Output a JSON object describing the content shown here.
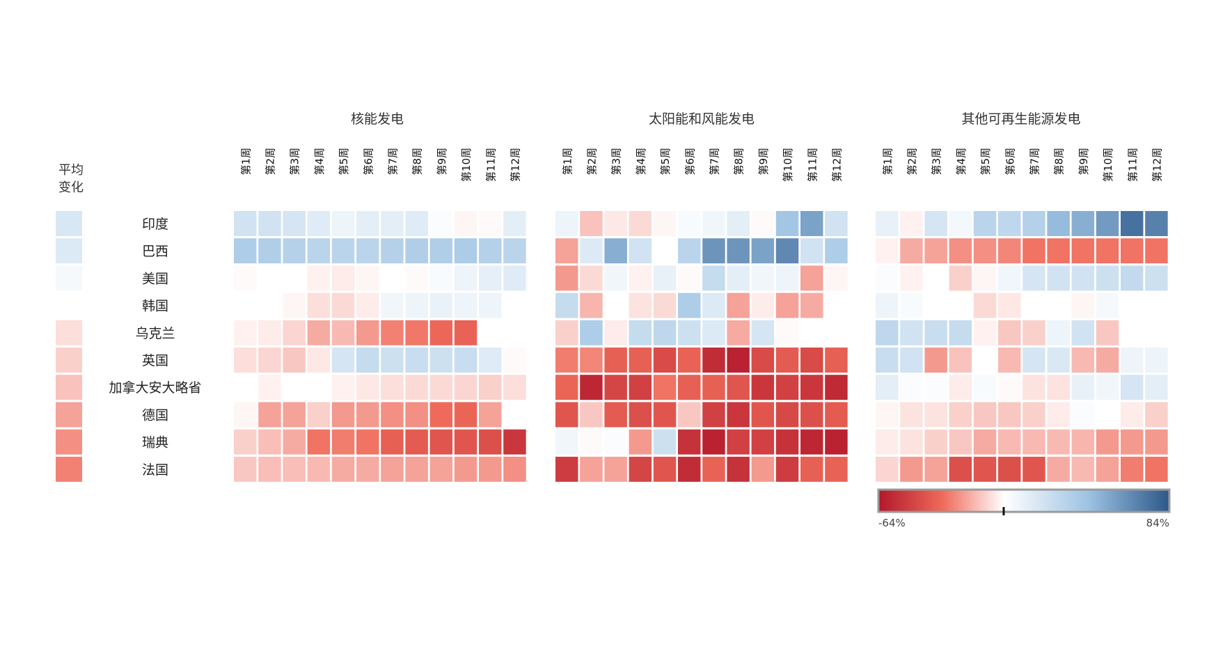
{
  "chart_data": {
    "type": "heatmap",
    "avg_title_lines": [
      "平均",
      "变化"
    ],
    "weeks": [
      "第1周",
      "第2周",
      "第3周",
      "第4周",
      "第5周",
      "第6周",
      "第7周",
      "第8周",
      "第9周",
      "第10周",
      "第11周",
      "第12周"
    ],
    "countries": [
      "印度",
      "巴西",
      "美国",
      "韩国",
      "乌克兰",
      "英国",
      "加拿大安大略省",
      "德国",
      "瑞典",
      "法国"
    ],
    "average_change": [
      17,
      15,
      4,
      0,
      -7,
      -10,
      -13,
      -20,
      -24,
      -27
    ],
    "panels": [
      {
        "title": "核能发电",
        "values": [
          [
            20,
            20,
            18,
            14,
            8,
            12,
            12,
            14,
            2,
            -2,
            -1,
            12
          ],
          [
            35,
            34,
            32,
            30,
            30,
            30,
            32,
            34,
            34,
            36,
            32,
            30
          ],
          [
            -1,
            0,
            0,
            -3,
            -4,
            -2,
            0,
            -1,
            3,
            8,
            11,
            14
          ],
          [
            0,
            0,
            -2,
            -7,
            -8,
            -4,
            6,
            8,
            9,
            8,
            8,
            null
          ],
          [
            -3,
            -4,
            -9,
            -18,
            -15,
            -22,
            -27,
            -29,
            -33,
            -35,
            null,
            null
          ],
          [
            -7,
            -9,
            -12,
            -5,
            18,
            25,
            22,
            24,
            22,
            24,
            14,
            -1
          ],
          [
            0,
            -3,
            0,
            0,
            -3,
            -5,
            -7,
            -8,
            -8,
            -9,
            -10,
            -7
          ],
          [
            -2,
            -20,
            -20,
            -10,
            -22,
            -22,
            -24,
            -24,
            -32,
            -34,
            -20,
            0
          ],
          [
            -10,
            -14,
            -18,
            -30,
            -28,
            -30,
            -36,
            -38,
            -40,
            -40,
            -42,
            -52
          ],
          [
            -12,
            -14,
            -14,
            -15,
            -18,
            -18,
            -20,
            -20,
            -20,
            -22,
            -22,
            -24
          ]
        ]
      },
      {
        "title": "太阳能和风能发电",
        "values": [
          [
            8,
            -13,
            -5,
            -8,
            -2,
            3,
            6,
            12,
            -1,
            40,
            55,
            20
          ],
          [
            -20,
            15,
            50,
            20,
            0,
            30,
            60,
            60,
            55,
            65,
            20,
            35
          ],
          [
            -22,
            -8,
            6,
            -3,
            10,
            -1,
            25,
            12,
            6,
            8,
            -20,
            -2
          ],
          [
            25,
            -16,
            0,
            -6,
            -8,
            35,
            15,
            -20,
            -4,
            -20,
            -18,
            null
          ],
          [
            -10,
            35,
            -4,
            25,
            28,
            22,
            15,
            -18,
            18,
            -1,
            null,
            null
          ],
          [
            -28,
            -26,
            -36,
            -36,
            -44,
            -35,
            -56,
            -60,
            -44,
            -38,
            -44,
            -36
          ],
          [
            -34,
            -58,
            -46,
            -48,
            -30,
            -36,
            -36,
            -40,
            -52,
            -48,
            -52,
            -57
          ],
          [
            -40,
            -12,
            -38,
            -42,
            -40,
            -12,
            -48,
            -52,
            -40,
            -45,
            -42,
            -38
          ],
          [
            6,
            -1,
            2,
            -22,
            22,
            -54,
            -60,
            -48,
            -48,
            -54,
            -58,
            -60
          ],
          [
            -50,
            -20,
            -20,
            -46,
            -40,
            -56,
            -35,
            -54,
            -22,
            -50,
            -36,
            -35
          ]
        ]
      },
      {
        "title": "其他可再生能源发电",
        "values": [
          [
            10,
            -3,
            18,
            5,
            30,
            28,
            32,
            45,
            50,
            58,
            74,
            68
          ],
          [
            -3,
            -18,
            -20,
            -24,
            -24,
            -26,
            -30,
            -30,
            -30,
            -30,
            -30,
            -30
          ],
          [
            2,
            -3,
            0,
            -10,
            -2,
            6,
            18,
            20,
            20,
            22,
            26,
            22
          ],
          [
            8,
            3,
            0,
            0,
            -8,
            -5,
            0,
            0,
            -2,
            4,
            0,
            null
          ],
          [
            28,
            20,
            24,
            25,
            -3,
            -12,
            -10,
            8,
            20,
            -12,
            null,
            null
          ],
          [
            24,
            20,
            -22,
            -13,
            0,
            -15,
            18,
            16,
            -15,
            -18,
            8,
            8
          ],
          [
            12,
            2,
            2,
            -4,
            3,
            -1,
            -6,
            -6,
            10,
            6,
            18,
            12
          ],
          [
            -2,
            -6,
            -6,
            -10,
            -12,
            -12,
            -10,
            -4,
            2,
            0,
            -4,
            -10
          ],
          [
            -4,
            -6,
            -10,
            -12,
            -18,
            -15,
            -15,
            -15,
            -16,
            -22,
            -22,
            -22
          ],
          [
            -9,
            -22,
            -20,
            -42,
            -40,
            -42,
            -40,
            -18,
            -15,
            -20,
            -28,
            -30
          ]
        ]
      }
    ],
    "color_scale": {
      "min": -64,
      "max": 84,
      "min_label": "-64%",
      "max_label": "84%",
      "stops": [
        "#b2182b",
        "#ef6a5a",
        "#ffffff",
        "#9ec3e3",
        "#2c5789"
      ]
    }
  }
}
